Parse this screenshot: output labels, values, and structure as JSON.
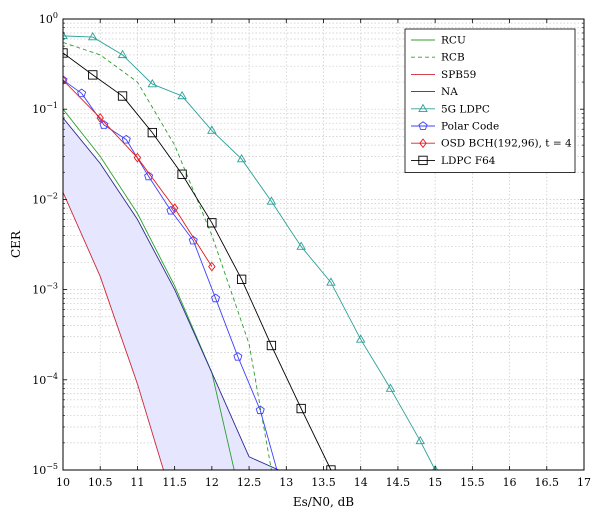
{
  "chart_data": {
    "type": "line",
    "xlabel": "Es/N0, dB",
    "ylabel": "CER",
    "xlim": [
      10,
      17
    ],
    "ylim": [
      1e-05,
      1
    ],
    "yscale": "log",
    "grid": true,
    "legend_position": "top-right",
    "x_ticks": [
      "10",
      "10.5",
      "11",
      "11.5",
      "12",
      "12.5",
      "13",
      "13.5",
      "14",
      "14.5",
      "15",
      "15.5",
      "16",
      "16.5",
      "17"
    ],
    "y_ticks": [
      {
        "base": "10",
        "exp": "0"
      },
      {
        "base": "10",
        "exp": "−1"
      },
      {
        "base": "10",
        "exp": "−2"
      },
      {
        "base": "10",
        "exp": "−3"
      },
      {
        "base": "10",
        "exp": "−4"
      },
      {
        "base": "10",
        "exp": "−5"
      }
    ],
    "shaded_region": {
      "between": [
        "SPB59",
        "NA"
      ],
      "color": "#e6e6ff"
    },
    "series": [
      {
        "name": "RCU",
        "color": "#2ca02c",
        "dash": "solid",
        "marker": "none",
        "x": [
          10,
          10.5,
          11,
          11.5,
          12,
          12.3
        ],
        "y": [
          0.1,
          0.03,
          0.007,
          0.0011,
          0.00012,
          1e-05
        ]
      },
      {
        "name": "RCB",
        "color": "#2ca02c",
        "dash": "dashed",
        "marker": "none",
        "x": [
          10,
          10.5,
          11,
          11.5,
          12,
          12.5,
          12.8
        ],
        "y": [
          0.55,
          0.4,
          0.2,
          0.04,
          0.004,
          0.00025,
          1e-05
        ]
      },
      {
        "name": "SPB59",
        "color": "#cc2936",
        "dash": "solid",
        "marker": "none",
        "x": [
          10,
          10.5,
          11,
          11.35
        ],
        "y": [
          0.012,
          0.0014,
          9e-05,
          1e-05
        ]
      },
      {
        "name": "NA",
        "color": "#2b2b8f",
        "dash": "solid",
        "marker": "none",
        "x": [
          10,
          10.5,
          11,
          11.5,
          12,
          12.5,
          12.9
        ],
        "y": [
          0.08,
          0.025,
          0.006,
          0.001,
          0.00012,
          1.4e-05,
          1e-05
        ]
      },
      {
        "name": "5G LDPC",
        "color": "#2aa198",
        "dash": "solid",
        "marker": "triangle",
        "x": [
          10,
          10.4,
          10.8,
          11.2,
          11.6,
          12,
          12.4,
          12.8,
          13.2,
          13.6,
          14,
          14.4,
          14.8,
          15
        ],
        "y": [
          0.65,
          0.63,
          0.4,
          0.19,
          0.14,
          0.058,
          0.028,
          0.0095,
          0.003,
          0.0012,
          0.00028,
          8e-05,
          2.1e-05,
          1e-05
        ]
      },
      {
        "name": "Polar Code",
        "color": "#4040ff",
        "dash": "solid",
        "marker": "pentagon",
        "x": [
          10,
          10.25,
          10.55,
          10.85,
          11.15,
          11.45,
          11.75,
          12.05,
          12.35,
          12.65,
          12.95
        ],
        "y": [
          0.21,
          0.15,
          0.067,
          0.046,
          0.018,
          0.0075,
          0.0035,
          0.0008,
          0.00018,
          4.6e-05,
          6e-06
        ]
      },
      {
        "name": "OSD BCH(192,96), t = 4",
        "color": "#e41a1c",
        "dash": "solid",
        "marker": "diamond",
        "x": [
          10,
          10.5,
          11,
          11.5,
          12
        ],
        "y": [
          0.21,
          0.08,
          0.029,
          0.008,
          0.0018
        ]
      },
      {
        "name": "LDPC F64",
        "color": "#000000",
        "dash": "solid",
        "marker": "square",
        "x": [
          10,
          10.4,
          10.8,
          11.2,
          11.6,
          12,
          12.4,
          12.8,
          13.2,
          13.6
        ],
        "y": [
          0.42,
          0.24,
          0.14,
          0.055,
          0.019,
          0.0055,
          0.0013,
          0.00024,
          4.8e-05,
          1e-05
        ]
      }
    ]
  }
}
